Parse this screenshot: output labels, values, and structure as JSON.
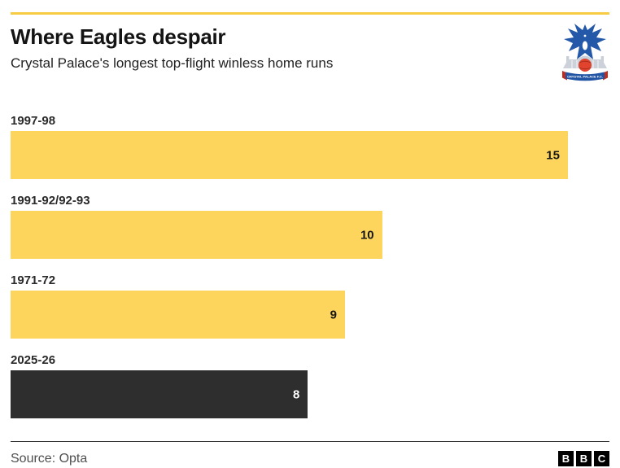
{
  "header": {
    "title": "Where Eagles despair",
    "subtitle": "Crystal Palace's longest top-flight winless home runs",
    "crest_banner": "CRYSTAL PALACE F.C.",
    "accent_color": "#F8CC42"
  },
  "chart_data": {
    "type": "bar",
    "orientation": "horizontal",
    "categories": [
      "1997-98",
      "1991-92/92-93",
      "1971-72",
      "2025-26"
    ],
    "values": [
      15,
      10,
      9,
      8
    ],
    "bar_colors": [
      "#FDD55C",
      "#FDD55C",
      "#FDD55C",
      "#2E2E2E"
    ],
    "value_label_colors": [
      "#161616",
      "#161616",
      "#161616",
      "#FFFFFF"
    ],
    "xlim": [
      0,
      15
    ],
    "max_bar_width_pct": 93.07,
    "title": "Where Eagles despair",
    "subtitle": "Crystal Palace's longest top-flight winless home runs",
    "value_labels_inside": true,
    "grid": false,
    "legend": false
  },
  "footer": {
    "source": "Source: Opta",
    "logo_letters": [
      "B",
      "B",
      "C"
    ]
  }
}
